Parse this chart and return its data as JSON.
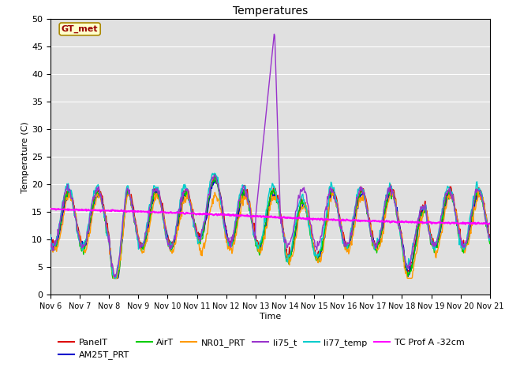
{
  "title": "Temperatures",
  "xlabel": "Time",
  "ylabel": "Temperature (C)",
  "xlim": [
    0,
    15
  ],
  "ylim": [
    0,
    50
  ],
  "yticks": [
    0,
    5,
    10,
    15,
    20,
    25,
    30,
    35,
    40,
    45,
    50
  ],
  "xtick_labels": [
    "Nov 6",
    "Nov 7",
    "Nov 8",
    "Nov 9",
    "Nov 10",
    "Nov 11",
    "Nov 12",
    "Nov 13",
    "Nov 14",
    "Nov 15",
    "Nov 16",
    "Nov 17",
    "Nov 18",
    "Nov 19",
    "Nov 20",
    "Nov 21"
  ],
  "background_color": "#e0e0e0",
  "gt_met_label": "GT_met",
  "gt_met_box_color": "#ffffcc",
  "gt_met_text_color": "#990000",
  "series": {
    "PanelT": {
      "color": "#dd0000",
      "lw": 1.0
    },
    "AM25T_PRT": {
      "color": "#0000cc",
      "lw": 1.0
    },
    "AirT": {
      "color": "#00cc00",
      "lw": 1.0
    },
    "NR01_PRT": {
      "color": "#ff9900",
      "lw": 1.0
    },
    "li75_t": {
      "color": "#9933cc",
      "lw": 1.0
    },
    "li77_temp": {
      "color": "#00cccc",
      "lw": 1.0
    },
    "TC Prof A -32cm": {
      "color": "#ff00ff",
      "lw": 1.5
    }
  },
  "figsize": [
    6.4,
    4.8
  ],
  "dpi": 100
}
